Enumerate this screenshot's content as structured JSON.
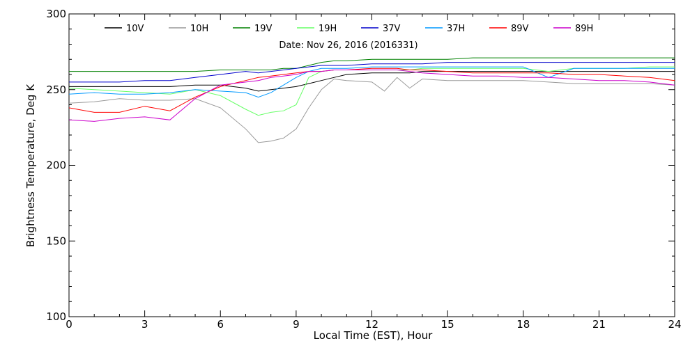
{
  "chart_data": {
    "type": "line",
    "annotation": "Date: Nov 26, 2016 (2016331)",
    "xlabel": "Local Time (EST), Hour",
    "ylabel": "Brightness Temperature, Deg K",
    "xlim": [
      0,
      24
    ],
    "ylim": [
      100,
      300
    ],
    "x_major_ticks": [
      0,
      3,
      6,
      9,
      12,
      15,
      18,
      21,
      24
    ],
    "x_tick_labels": [
      "0",
      "3",
      "6",
      "9",
      "12",
      "15",
      "18",
      "21",
      "24"
    ],
    "y_major_ticks": [
      100,
      150,
      200,
      250,
      300
    ],
    "y_tick_labels": [
      "100",
      "150",
      "200",
      "250",
      "300"
    ],
    "legend_position": "top",
    "grid": false,
    "x": [
      0,
      1,
      2,
      3,
      4,
      5,
      6,
      7,
      7.5,
      8,
      8.5,
      9,
      9.5,
      10,
      10.5,
      11,
      12,
      12.5,
      13,
      13.5,
      14,
      15,
      16,
      17,
      18,
      19,
      20,
      21,
      22,
      23,
      24
    ],
    "series": [
      {
        "name": "10V",
        "color": "#000000",
        "values": [
          252,
          252,
          252,
          252,
          252,
          253,
          253,
          251,
          249,
          250,
          251,
          252,
          254,
          256,
          258,
          260,
          261,
          261,
          261,
          261,
          262,
          262,
          262,
          262,
          262,
          262,
          262,
          262,
          262,
          262,
          262
        ]
      },
      {
        "name": "10H",
        "color": "#999999",
        "values": [
          241,
          242,
          244,
          243,
          243,
          244,
          238,
          224,
          215,
          216,
          218,
          224,
          238,
          250,
          257,
          256,
          255,
          249,
          258,
          251,
          257,
          256,
          256,
          256,
          256,
          255,
          254,
          254,
          254,
          254,
          253
        ]
      },
      {
        "name": "19V",
        "color": "#008000",
        "values": [
          262,
          262,
          262,
          262,
          262,
          262,
          263,
          263,
          263,
          263,
          264,
          264,
          266,
          268,
          269,
          269,
          270,
          270,
          270,
          270,
          270,
          270,
          271,
          271,
          271,
          271,
          271,
          271,
          271,
          271,
          271
        ]
      },
      {
        "name": "19H",
        "color": "#66ff66",
        "values": [
          251,
          250,
          249,
          248,
          247,
          250,
          246,
          237,
          233,
          235,
          236,
          240,
          258,
          262,
          263,
          263,
          263,
          263,
          263,
          263,
          264,
          264,
          264,
          264,
          264,
          262,
          264,
          264,
          264,
          265,
          265
        ]
      },
      {
        "name": "37V",
        "color": "#0000cc",
        "values": [
          255,
          255,
          255,
          256,
          256,
          258,
          260,
          262,
          261,
          262,
          263,
          264,
          265,
          266,
          266,
          266,
          267,
          267,
          267,
          267,
          267,
          268,
          268,
          268,
          268,
          268,
          268,
          268,
          268,
          268,
          268
        ]
      },
      {
        "name": "37H",
        "color": "#0099ff",
        "values": [
          247,
          248,
          247,
          247,
          248,
          250,
          249,
          248,
          245,
          248,
          253,
          258,
          262,
          264,
          264,
          264,
          265,
          265,
          265,
          265,
          265,
          265,
          265,
          265,
          265,
          258,
          264,
          264,
          264,
          264,
          264
        ]
      },
      {
        "name": "89V",
        "color": "#ff0000",
        "values": [
          238,
          235,
          235,
          239,
          236,
          245,
          252,
          256,
          258,
          259,
          260,
          261,
          262,
          262,
          263,
          263,
          264,
          264,
          264,
          263,
          263,
          262,
          261,
          261,
          261,
          261,
          260,
          260,
          259,
          258,
          256
        ]
      },
      {
        "name": "89H",
        "color": "#cc00cc",
        "values": [
          230,
          229,
          231,
          232,
          230,
          244,
          253,
          255,
          256,
          258,
          259,
          260,
          262,
          262,
          263,
          263,
          263,
          263,
          263,
          262,
          261,
          260,
          259,
          259,
          258,
          258,
          257,
          256,
          256,
          255,
          253
        ]
      }
    ]
  }
}
